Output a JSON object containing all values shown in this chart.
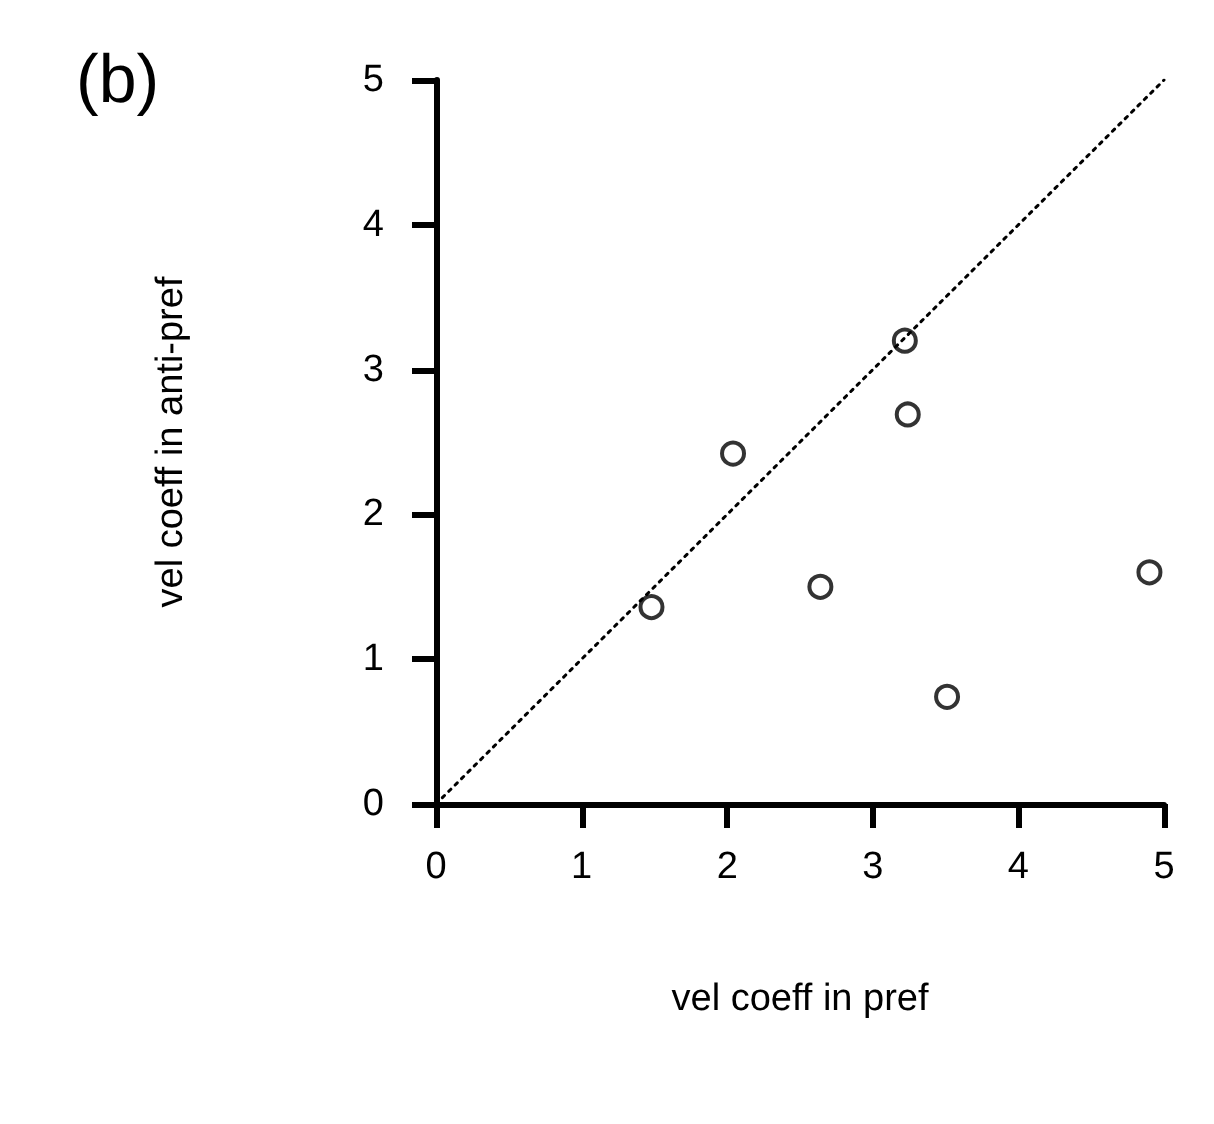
{
  "chart_data": {
    "type": "scatter",
    "title": "(b)",
    "xlabel": "vel coeff in pref",
    "ylabel": "vel coeff in anti-pref",
    "xlim": [
      0,
      5
    ],
    "ylim": [
      0,
      5
    ],
    "xticks": [
      0,
      1,
      2,
      3,
      4,
      5
    ],
    "yticks": [
      0,
      1,
      2,
      3,
      4,
      5
    ],
    "grid": false,
    "marker": "circle",
    "series": [
      {
        "type": "scatter",
        "color": "#000000",
        "x": [
          1.48,
          2.04,
          2.64,
          3.22,
          3.24,
          3.51,
          4.9
        ],
        "values": [
          1.36,
          2.42,
          1.5,
          3.2,
          2.69,
          0.74,
          1.6
        ]
      },
      {
        "type": "line",
        "color": "#000000",
        "line_style": "dotted",
        "marker": "none",
        "x": [
          0,
          5
        ],
        "values": [
          0,
          5
        ]
      }
    ]
  }
}
